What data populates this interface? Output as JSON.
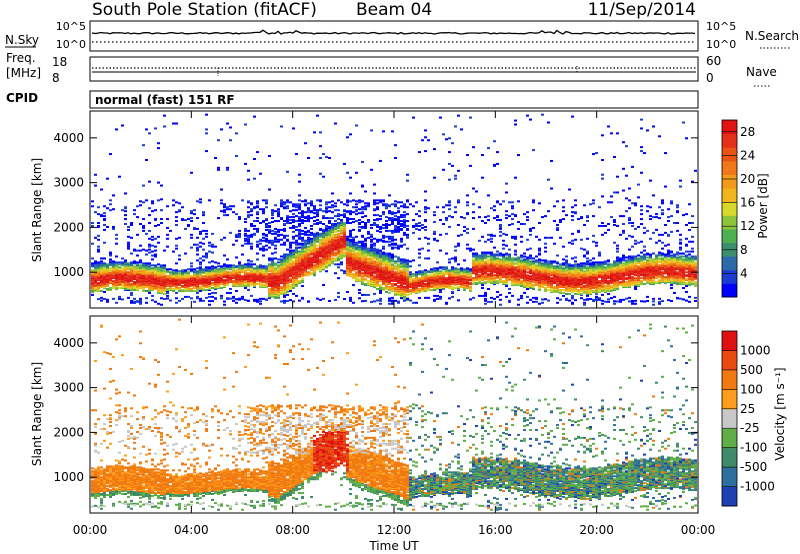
{
  "header": {
    "station": "South Pole Station (fitACF)",
    "beam": "Beam 04",
    "date": "11/Sep/2014"
  },
  "top_strip": {
    "left_label": "N.Sky",
    "left_ticks": [
      "10^5",
      "10^0"
    ],
    "right_label": "N.Search",
    "right_ticks": [
      "10^5",
      "10^0"
    ]
  },
  "freq_strip": {
    "label_line1": "Freq.",
    "label_line2": "[MHz]",
    "left_ticks": [
      "18",
      "8"
    ],
    "right_label": "Nave",
    "right_ticks": [
      "60",
      "0"
    ]
  },
  "cpid": {
    "label": "CPID",
    "program": "normal (fast) 151 RF"
  },
  "chart_data": [
    {
      "type": "heatmap",
      "panel": "power",
      "xlabel": "Time UT",
      "ylabel": "Slant Range [km]",
      "x_ticks": [
        "00:00",
        "04:00",
        "08:00",
        "12:00",
        "16:00",
        "20:00",
        "00:00"
      ],
      "y_ticks": [
        1000,
        2000,
        3000,
        4000
      ],
      "ylim": [
        200,
        4600
      ],
      "colorbar": {
        "label": "Power [dB]",
        "ticks": [
          "4",
          "8",
          "12",
          "16",
          "20",
          "24",
          "28"
        ],
        "colors": [
          "#0000ff",
          "#1a3cd2",
          "#2d6aa8",
          "#3a8f6e",
          "#4caf50",
          "#8cc43c",
          "#d8d82a",
          "#f0b61c",
          "#f29a1a",
          "#f07818",
          "#e85418",
          "#e43018",
          "#e01414"
        ]
      }
    },
    {
      "type": "heatmap",
      "panel": "velocity",
      "xlabel": "Time UT",
      "ylabel": "Slant Range [km]",
      "x_ticks": [
        "00:00",
        "04:00",
        "08:00",
        "12:00",
        "16:00",
        "20:00",
        "00:00"
      ],
      "y_ticks": [
        1000,
        2000,
        3000,
        4000
      ],
      "ylim": [
        200,
        4600
      ],
      "colorbar": {
        "label": "Velocity [m s⁻¹]",
        "ticks": [
          "1000",
          "500",
          "100",
          "25",
          "-25",
          "-100",
          "-500",
          "-1000"
        ],
        "colors": [
          "#1f3fb4",
          "#2f6fa0",
          "#3e8a6a",
          "#5fae48",
          "#c8c8c8",
          "#ff9e1c",
          "#f07a10",
          "#e84a10",
          "#e01010"
        ]
      }
    }
  ]
}
